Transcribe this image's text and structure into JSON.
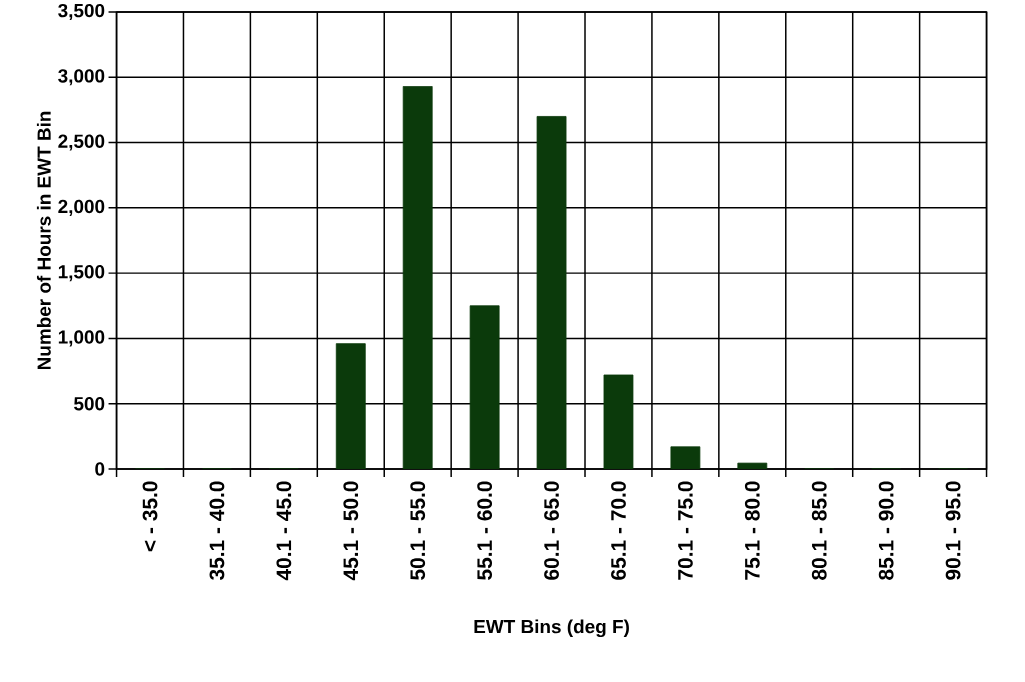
{
  "chart_data": {
    "type": "bar",
    "xlabel": "EWT Bins (deg F)",
    "ylabel": "Number of Hours in EWT Bin",
    "categories": [
      "< - 35.0",
      "35.1 - 40.0",
      "40.1 - 45.0",
      "45.1 - 50.0",
      "50.1 - 55.0",
      "55.1 - 60.0",
      "60.1 - 65.0",
      "65.1 - 70.0",
      "70.1 - 75.0",
      "75.1 - 80.0",
      "80.1 - 85.0",
      "85.1 - 90.0",
      "90.1 - 95.0"
    ],
    "values": [
      0,
      0,
      0,
      960,
      2930,
      1250,
      2700,
      720,
      170,
      45,
      0,
      0,
      0
    ],
    "color": "#0b3a0b",
    "ylim": [
      0,
      3500
    ],
    "yticks": [
      {
        "value": 0,
        "label": "0"
      },
      {
        "value": 500,
        "label": "500"
      },
      {
        "value": 1000,
        "label": "1,000"
      },
      {
        "value": 1500,
        "label": "1,500"
      },
      {
        "value": 2000,
        "label": "2,000"
      },
      {
        "value": 2500,
        "label": "2,500"
      },
      {
        "value": 3000,
        "label": "3,000"
      },
      {
        "value": 3500,
        "label": "3,500"
      }
    ],
    "grid": true
  }
}
